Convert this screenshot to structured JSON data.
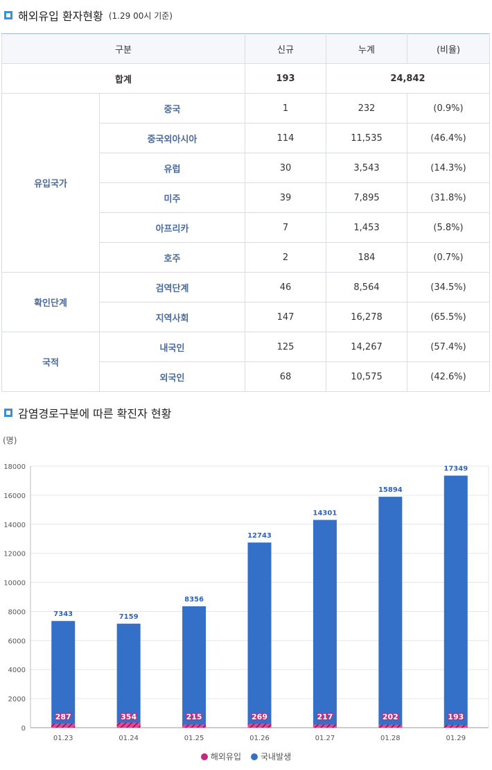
{
  "section1": {
    "title": "해외유입 환자현황",
    "note": "(1.29 00시 기준)"
  },
  "table": {
    "headers": [
      "구분",
      "신규",
      "누계",
      "(비율)"
    ],
    "total": {
      "label": "합계",
      "new": "193",
      "cumulative": "24,842"
    },
    "groups": [
      {
        "label": "유입국가",
        "rows": [
          {
            "label": "중국",
            "new": "1",
            "cumulative": "232",
            "ratio": "(0.9%)"
          },
          {
            "label": "중국외아시아",
            "new": "114",
            "cumulative": "11,535",
            "ratio": "(46.4%)"
          },
          {
            "label": "유럽",
            "new": "30",
            "cumulative": "3,543",
            "ratio": "(14.3%)"
          },
          {
            "label": "미주",
            "new": "39",
            "cumulative": "7,895",
            "ratio": "(31.8%)"
          },
          {
            "label": "아프리카",
            "new": "7",
            "cumulative": "1,453",
            "ratio": "(5.8%)"
          },
          {
            "label": "호주",
            "new": "2",
            "cumulative": "184",
            "ratio": "(0.7%)"
          }
        ]
      },
      {
        "label": "확인단계",
        "rows": [
          {
            "label": "검역단계",
            "new": "46",
            "cumulative": "8,564",
            "ratio": "(34.5%)"
          },
          {
            "label": "지역사회",
            "new": "147",
            "cumulative": "16,278",
            "ratio": "(65.5%)"
          }
        ]
      },
      {
        "label": "국적",
        "rows": [
          {
            "label": "내국인",
            "new": "125",
            "cumulative": "14,267",
            "ratio": "(57.4%)"
          },
          {
            "label": "외국인",
            "new": "68",
            "cumulative": "10,575",
            "ratio": "(42.6%)"
          }
        ]
      }
    ]
  },
  "section2": {
    "title": "감염경로구분에 따른 확진자 현황"
  },
  "chart_data": {
    "type": "bar",
    "stacked": true,
    "ylabel": "(명)",
    "ylim": [
      0,
      18000
    ],
    "yticks": [
      0,
      2000,
      4000,
      6000,
      8000,
      10000,
      12000,
      14000,
      16000,
      18000
    ],
    "grid": true,
    "legend_position": "bottom-center",
    "categories": [
      "01.23",
      "01.24",
      "01.25",
      "01.26",
      "01.27",
      "01.28",
      "01.29"
    ],
    "series": [
      {
        "name": "해외유입",
        "color": "#c8287a",
        "values": [
          287,
          354,
          215,
          269,
          217,
          202,
          193
        ]
      },
      {
        "name": "국내발생",
        "color": "#3470c8",
        "values": [
          7343,
          7159,
          8356,
          12743,
          14301,
          15894,
          17349
        ]
      }
    ]
  }
}
